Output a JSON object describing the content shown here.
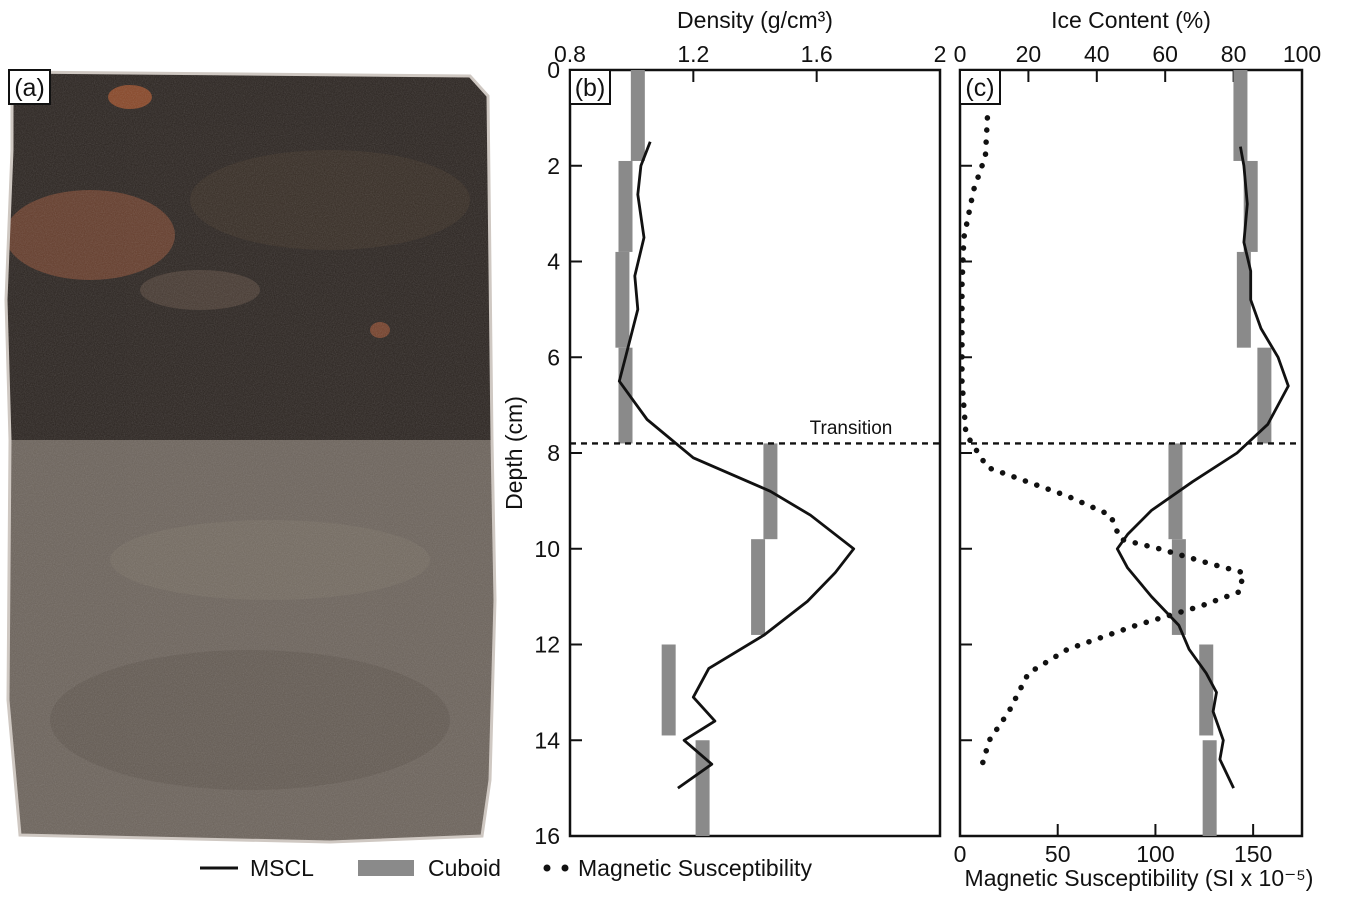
{
  "panel_labels": {
    "a": "(a)",
    "b": "(b)",
    "c": "(c)"
  },
  "colors": {
    "mscl": "#111111",
    "cuboid": "#8a8a8a",
    "magsus": "#111111",
    "core_organic": "#2b2420",
    "core_mineral": "#6d645c",
    "core_peat": "#7a4630"
  },
  "legend": {
    "mscl_label": "MSCL",
    "cuboid_label": "Cuboid",
    "magsus_label": "Magnetic Susceptibility",
    "placement": "bottom"
  },
  "transition": {
    "label": "Transition",
    "depth": 7.8
  },
  "chart_data": [
    {
      "id": "b",
      "type": "line",
      "panel_label": "(b)",
      "xlabel": "Density (g/cm³)",
      "ylabel": "Depth (cm)",
      "x_axis_position": "top",
      "xlim": [
        0.8,
        2.0
      ],
      "xticks": [
        0.8,
        1.2,
        1.6,
        2.0
      ],
      "xtick_labels": [
        "0.8",
        "1.2",
        "1.6",
        "2"
      ],
      "ylim": [
        0,
        16
      ],
      "y_inverted": true,
      "yticks": [
        0,
        2,
        4,
        6,
        8,
        10,
        12,
        14,
        16
      ],
      "ytick_labels": [
        "0",
        "2",
        "4",
        "6",
        "8",
        "10",
        "12",
        "14",
        "16"
      ],
      "series": [
        {
          "name": "MSCL",
          "style": "solid",
          "points": [
            [
              1.06,
              1.5
            ],
            [
              1.03,
              2.0
            ],
            [
              1.02,
              2.6
            ],
            [
              1.04,
              3.5
            ],
            [
              1.01,
              4.3
            ],
            [
              1.02,
              5.0
            ],
            [
              0.98,
              6.0
            ],
            [
              0.96,
              6.5
            ],
            [
              1.05,
              7.3
            ],
            [
              1.2,
              8.1
            ],
            [
              1.45,
              8.8
            ],
            [
              1.58,
              9.3
            ],
            [
              1.72,
              10.0
            ],
            [
              1.66,
              10.5
            ],
            [
              1.57,
              11.1
            ],
            [
              1.43,
              11.8
            ],
            [
              1.25,
              12.5
            ],
            [
              1.2,
              13.1
            ],
            [
              1.27,
              13.6
            ],
            [
              1.17,
              14.0
            ],
            [
              1.26,
              14.5
            ],
            [
              1.15,
              15.0
            ]
          ]
        },
        {
          "name": "Cuboid",
          "style": "bar",
          "segments": [
            {
              "depth_top": 0.0,
              "depth_bottom": 1.9,
              "value": 1.02
            },
            {
              "depth_top": 1.9,
              "depth_bottom": 3.8,
              "value": 0.98
            },
            {
              "depth_top": 3.8,
              "depth_bottom": 5.8,
              "value": 0.97
            },
            {
              "depth_top": 5.8,
              "depth_bottom": 7.8,
              "value": 0.98
            },
            {
              "depth_top": 7.8,
              "depth_bottom": 9.8,
              "value": 1.45
            },
            {
              "depth_top": 9.8,
              "depth_bottom": 11.8,
              "value": 1.41
            },
            {
              "depth_top": 12.0,
              "depth_bottom": 13.9,
              "value": 1.12
            },
            {
              "depth_top": 14.0,
              "depth_bottom": 16.0,
              "value": 1.23
            }
          ]
        }
      ]
    },
    {
      "id": "c",
      "type": "line",
      "panel_label": "(c)",
      "xlabel": "Ice Content (%)",
      "ylabel": "",
      "x_axis_position": "top",
      "xlim": [
        0,
        100
      ],
      "xticks": [
        0,
        20,
        40,
        60,
        80,
        100
      ],
      "xtick_labels": [
        "0",
        "20",
        "40",
        "60",
        "80",
        "100"
      ],
      "ylim": [
        0,
        16
      ],
      "y_inverted": true,
      "yticks": [
        0,
        2,
        4,
        6,
        8,
        10,
        12,
        14,
        16
      ],
      "x2label": "Magnetic Susceptibility (SI x 10⁻⁵)",
      "x2_axis_position": "bottom",
      "x2lim": [
        0,
        175
      ],
      "x2ticks": [
        0,
        50,
        100,
        150
      ],
      "x2tick_labels": [
        "0",
        "50",
        "100",
        "150"
      ],
      "series": [
        {
          "name": "MSCL",
          "axis": "top",
          "style": "solid",
          "points": [
            [
              82,
              1.6
            ],
            [
              83,
              2.0
            ],
            [
              84,
              2.8
            ],
            [
              83,
              3.6
            ],
            [
              85,
              4.2
            ],
            [
              85,
              4.8
            ],
            [
              88,
              5.4
            ],
            [
              93,
              6.0
            ],
            [
              96,
              6.6
            ],
            [
              90,
              7.4
            ],
            [
              81,
              8.0
            ],
            [
              68,
              8.6
            ],
            [
              56,
              9.2
            ],
            [
              49,
              9.7
            ],
            [
              46,
              10.0
            ],
            [
              49,
              10.4
            ],
            [
              56,
              11.0
            ],
            [
              64,
              11.6
            ],
            [
              67,
              12.1
            ],
            [
              72,
              12.6
            ],
            [
              75,
              13.0
            ],
            [
              74,
              13.4
            ],
            [
              77,
              14.0
            ],
            [
              76,
              14.4
            ],
            [
              80,
              15.0
            ]
          ]
        },
        {
          "name": "Cuboid",
          "axis": "top",
          "style": "bar",
          "segments": [
            {
              "depth_top": 0.0,
              "depth_bottom": 1.9,
              "value": 82
            },
            {
              "depth_top": 1.9,
              "depth_bottom": 3.8,
              "value": 85
            },
            {
              "depth_top": 3.8,
              "depth_bottom": 5.8,
              "value": 83
            },
            {
              "depth_top": 5.8,
              "depth_bottom": 7.8,
              "value": 89
            },
            {
              "depth_top": 7.8,
              "depth_bottom": 9.8,
              "value": 63
            },
            {
              "depth_top": 9.8,
              "depth_bottom": 11.8,
              "value": 64
            },
            {
              "depth_top": 12.0,
              "depth_bottom": 13.9,
              "value": 72
            },
            {
              "depth_top": 14.0,
              "depth_bottom": 16.0,
              "value": 73
            }
          ]
        },
        {
          "name": "Magnetic Susceptibility",
          "axis": "bottom",
          "style": "dotted",
          "points": [
            [
              14,
              1.0
            ],
            [
              13,
              1.8
            ],
            [
              7,
              2.5
            ],
            [
              2,
              3.5
            ],
            [
              1,
              4.5
            ],
            [
              1,
              5.5
            ],
            [
              1,
              6.5
            ],
            [
              3,
              7.6
            ],
            [
              14,
              8.3
            ],
            [
              55,
              8.9
            ],
            [
              77,
              9.3
            ],
            [
              82,
              9.8
            ],
            [
              102,
              10.0
            ],
            [
              127,
              10.3
            ],
            [
              145,
              10.5
            ],
            [
              143,
              10.9
            ],
            [
              123,
              11.2
            ],
            [
              90,
              11.6
            ],
            [
              55,
              12.1
            ],
            [
              35,
              12.6
            ],
            [
              25,
              13.4
            ],
            [
              15,
              14.0
            ],
            [
              10,
              14.7
            ]
          ]
        }
      ]
    }
  ]
}
